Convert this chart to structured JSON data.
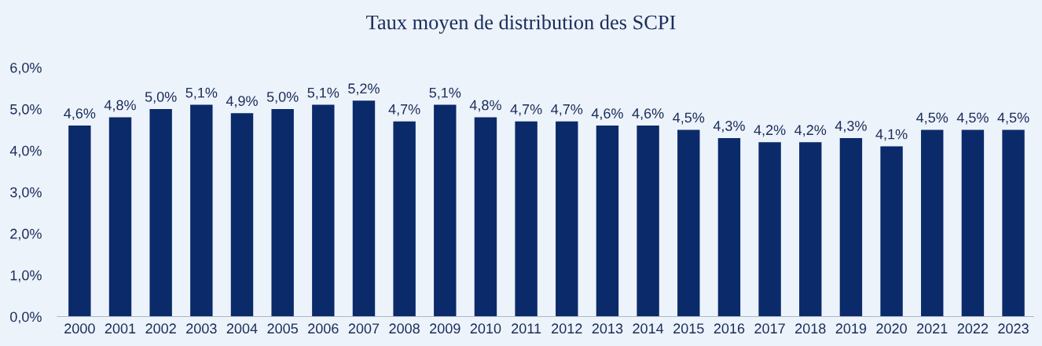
{
  "chart_data": {
    "type": "bar",
    "title": "Taux moyen de distribution des SCPI",
    "categories": [
      "2000",
      "2001",
      "2002",
      "2003",
      "2004",
      "2005",
      "2006",
      "2007",
      "2008",
      "2009",
      "2010",
      "2011",
      "2012",
      "2013",
      "2014",
      "2015",
      "2016",
      "2017",
      "2018",
      "2019",
      "2020",
      "2021",
      "2022",
      "2023"
    ],
    "values": [
      4.6,
      4.8,
      5.0,
      5.1,
      4.9,
      5.0,
      5.1,
      5.2,
      4.7,
      5.1,
      4.8,
      4.7,
      4.7,
      4.6,
      4.6,
      4.5,
      4.3,
      4.2,
      4.2,
      4.3,
      4.1,
      4.5,
      4.5,
      4.5
    ],
    "value_labels": [
      "4,6%",
      "4,8%",
      "5,0%",
      "5,1%",
      "4,9%",
      "5,0%",
      "5,1%",
      "5,2%",
      "4,7%",
      "5,1%",
      "4,8%",
      "4,7%",
      "4,7%",
      "4,6%",
      "4,6%",
      "4,5%",
      "4,3%",
      "4,2%",
      "4,2%",
      "4,3%",
      "4,1%",
      "4,5%",
      "4,5%",
      "4,5%"
    ],
    "color": "#0b2a6a",
    "ylim": [
      0,
      6
    ],
    "yticks": [
      {
        "value": 0,
        "label": "0,0%"
      },
      {
        "value": 1,
        "label": "1,0%"
      },
      {
        "value": 2,
        "label": "2,0%"
      },
      {
        "value": 3,
        "label": "3,0%"
      },
      {
        "value": 4,
        "label": "4,0%"
      },
      {
        "value": 5,
        "label": "5,0%"
      },
      {
        "value": 6,
        "label": "6,0%"
      }
    ],
    "grid": false,
    "legend": false
  }
}
